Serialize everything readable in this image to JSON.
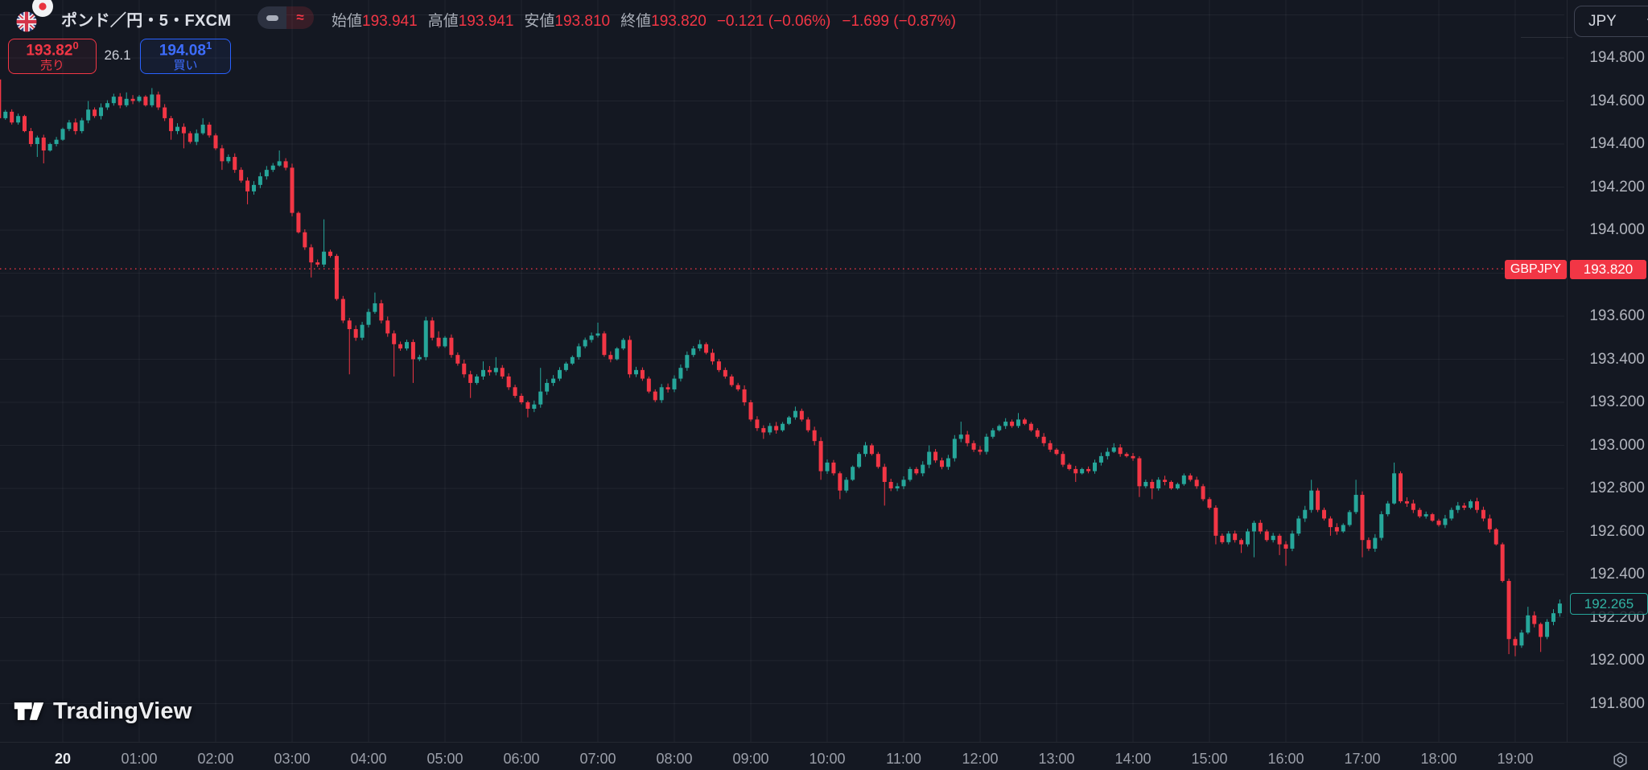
{
  "app": {
    "background": "#141822",
    "accent_red": "#f23645",
    "accent_teal": "#26a69a",
    "accent_blue": "#2962ff"
  },
  "header": {
    "title": "ポンド／円・5・FXCM",
    "flag_icon": "gbp-jpy-flags-icon",
    "style_toggle": {
      "left_icon": "candle-body-icon",
      "right_icon": "approx-waves-icon"
    },
    "ohlc": {
      "open_label": "始値",
      "open_value": "193.941",
      "high_label": "高値",
      "high_value": "193.941",
      "low_label": "安値",
      "low_value": "193.810",
      "close_label": "終値",
      "close_value": "193.820",
      "change": "−0.121 (−0.06%)",
      "change_cumulative": "−1.699 (−0.87%)"
    },
    "currency_selector": "JPY"
  },
  "trade_panel": {
    "sell_price": "193.82",
    "sell_price_sup": "0",
    "sell_label": "売り",
    "spread": "26.1",
    "buy_price": "194.08",
    "buy_price_sup": "1",
    "buy_label": "買い"
  },
  "price_line_label": {
    "symbol": "GBPJPY",
    "price": "193.820"
  },
  "last_price_label": "192.265",
  "price_axis_labels": [
    "194.800",
    "194.600",
    "194.400",
    "194.200",
    "194.000",
    "193.600",
    "193.400",
    "193.200",
    "193.000",
    "192.800",
    "192.600",
    "192.400",
    "192.200",
    "192.000",
    "191.800"
  ],
  "time_axis": {
    "day_label": "20",
    "hour_labels": [
      "01:00",
      "02:00",
      "03:00",
      "04:00",
      "05:00",
      "06:00",
      "07:00",
      "08:00",
      "09:00",
      "10:00",
      "11:00",
      "12:00",
      "13:00",
      "14:00",
      "15:00",
      "16:00",
      "17:00",
      "18:00",
      "19:00"
    ]
  },
  "logo_text": "TradingView",
  "chart_data": {
    "type": "candlestick",
    "symbol": "GBPJPY",
    "exchange": "FXCM",
    "interval_minutes": 5,
    "visible_price_range": [
      191.72,
      195.02
    ],
    "price_grid_step": 0.2,
    "price_grid_top": 195.0,
    "hour_grid_count": 19,
    "price_line_value": 193.82,
    "last_close": 192.265,
    "first_open": 194.7,
    "time_start_minutes": -50,
    "colors": {
      "up": "#26a69a",
      "down": "#f23645",
      "grid": "rgba(255,255,255,0.055)",
      "price_line": "#f23645"
    },
    "candles": [
      [
        -50,
        194.52,
        0,
        194.78
      ],
      [
        -45,
        194.55
      ],
      [
        -40,
        194.5
      ],
      [
        -35,
        194.53
      ],
      [
        -30,
        194.46
      ],
      [
        -25,
        194.4
      ],
      [
        -20,
        194.43,
        194.34
      ],
      [
        -15,
        194.37,
        194.31
      ],
      [
        -10,
        194.4
      ],
      [
        -5,
        194.42
      ],
      [
        0,
        194.47
      ],
      [
        5,
        194.5
      ],
      [
        10,
        194.46
      ],
      [
        15,
        194.51
      ],
      [
        20,
        194.56,
        0,
        194.6
      ],
      [
        25,
        194.53
      ],
      [
        30,
        194.57
      ],
      [
        35,
        194.59
      ],
      [
        40,
        194.62
      ],
      [
        45,
        194.58
      ],
      [
        50,
        194.61,
        0,
        194.64
      ],
      [
        55,
        194.6
      ],
      [
        60,
        194.62
      ],
      [
        65,
        194.58
      ],
      [
        70,
        194.63,
        0,
        194.66
      ],
      [
        75,
        194.57
      ],
      [
        80,
        194.52
      ],
      [
        85,
        194.46,
        194.42
      ],
      [
        90,
        194.48
      ],
      [
        95,
        194.45,
        194.38
      ],
      [
        100,
        194.41
      ],
      [
        105,
        194.45
      ],
      [
        110,
        194.49,
        0,
        194.52
      ],
      [
        115,
        194.44
      ],
      [
        120,
        194.38
      ],
      [
        125,
        194.32,
        194.28
      ],
      [
        130,
        194.34
      ],
      [
        135,
        194.28
      ],
      [
        140,
        194.23
      ],
      [
        145,
        194.18,
        194.12
      ],
      [
        150,
        194.21
      ],
      [
        155,
        194.25
      ],
      [
        160,
        194.28
      ],
      [
        165,
        194.3
      ],
      [
        170,
        194.32,
        0,
        194.37
      ],
      [
        175,
        194.29
      ],
      [
        180,
        194.08
      ],
      [
        185,
        193.99
      ],
      [
        190,
        193.92
      ],
      [
        195,
        193.85,
        193.78
      ],
      [
        200,
        193.84
      ],
      [
        205,
        193.9,
        0,
        194.05
      ],
      [
        210,
        193.88
      ],
      [
        215,
        193.68
      ],
      [
        220,
        193.58
      ],
      [
        225,
        193.54,
        193.33
      ],
      [
        230,
        193.5
      ],
      [
        235,
        193.56
      ],
      [
        240,
        193.62
      ],
      [
        245,
        193.66,
        0,
        193.71
      ],
      [
        250,
        193.58
      ],
      [
        255,
        193.52
      ],
      [
        260,
        193.47,
        193.32
      ],
      [
        265,
        193.45
      ],
      [
        270,
        193.48
      ],
      [
        275,
        193.4,
        193.29
      ],
      [
        280,
        193.41
      ],
      [
        285,
        193.58
      ],
      [
        290,
        193.5
      ],
      [
        295,
        193.46,
        0,
        193.53
      ],
      [
        300,
        193.5
      ],
      [
        305,
        193.42
      ],
      [
        310,
        193.38
      ],
      [
        315,
        193.33
      ],
      [
        320,
        193.29,
        193.22
      ],
      [
        325,
        193.32
      ],
      [
        330,
        193.35,
        0,
        193.39
      ],
      [
        335,
        193.34
      ],
      [
        340,
        193.36,
        0,
        193.41
      ],
      [
        345,
        193.32
      ],
      [
        350,
        193.27
      ],
      [
        355,
        193.23
      ],
      [
        360,
        193.2
      ],
      [
        365,
        193.17,
        193.13
      ],
      [
        370,
        193.19
      ],
      [
        375,
        193.25,
        0,
        193.36
      ],
      [
        380,
        193.29
      ],
      [
        385,
        193.31
      ],
      [
        390,
        193.35
      ],
      [
        395,
        193.38
      ],
      [
        400,
        193.41
      ],
      [
        405,
        193.46
      ],
      [
        410,
        193.49
      ],
      [
        415,
        193.51
      ],
      [
        420,
        193.52,
        0,
        193.57
      ],
      [
        425,
        193.42
      ],
      [
        430,
        193.4
      ],
      [
        435,
        193.45
      ],
      [
        440,
        193.49
      ],
      [
        445,
        193.33
      ],
      [
        450,
        193.35
      ],
      [
        455,
        193.31
      ],
      [
        460,
        193.25
      ],
      [
        465,
        193.21
      ],
      [
        470,
        193.27
      ],
      [
        475,
        193.26
      ],
      [
        480,
        193.31
      ],
      [
        485,
        193.36
      ],
      [
        490,
        193.42
      ],
      [
        495,
        193.45
      ],
      [
        500,
        193.47,
        0,
        193.49
      ],
      [
        505,
        193.43
      ],
      [
        510,
        193.39
      ],
      [
        515,
        193.35
      ],
      [
        520,
        193.32
      ],
      [
        525,
        193.28
      ],
      [
        530,
        193.26
      ],
      [
        535,
        193.2
      ],
      [
        540,
        193.12
      ],
      [
        545,
        193.08
      ],
      [
        550,
        193.06,
        193.03
      ],
      [
        555,
        193.09
      ],
      [
        560,
        193.07
      ],
      [
        565,
        193.1
      ],
      [
        570,
        193.13
      ],
      [
        575,
        193.16,
        0,
        193.18
      ],
      [
        580,
        193.12
      ],
      [
        585,
        193.07
      ],
      [
        590,
        193.02,
        193.0
      ],
      [
        595,
        192.88,
        192.84
      ],
      [
        600,
        192.92
      ],
      [
        605,
        192.87
      ],
      [
        610,
        192.79,
        192.75
      ],
      [
        615,
        192.84
      ],
      [
        620,
        192.9
      ],
      [
        625,
        192.96
      ],
      [
        630,
        193.0
      ],
      [
        635,
        192.96
      ],
      [
        640,
        192.9
      ],
      [
        645,
        192.83,
        192.72
      ],
      [
        650,
        192.8
      ],
      [
        655,
        192.81
      ],
      [
        660,
        192.84
      ],
      [
        665,
        192.89
      ],
      [
        670,
        192.87
      ],
      [
        675,
        192.91
      ],
      [
        680,
        192.97,
        0,
        193.0
      ],
      [
        685,
        192.93
      ],
      [
        690,
        192.9
      ],
      [
        695,
        192.94
      ],
      [
        700,
        193.03
      ],
      [
        705,
        193.05,
        0,
        193.11
      ],
      [
        710,
        193.01
      ],
      [
        715,
        192.98
      ],
      [
        720,
        192.97
      ],
      [
        725,
        193.04
      ],
      [
        730,
        193.07
      ],
      [
        735,
        193.09
      ],
      [
        740,
        193.11
      ],
      [
        745,
        193.09
      ],
      [
        750,
        193.12,
        0,
        193.15
      ],
      [
        755,
        193.1
      ],
      [
        760,
        193.07
      ],
      [
        765,
        193.04
      ],
      [
        770,
        193.01
      ],
      [
        775,
        192.98
      ],
      [
        780,
        192.96
      ],
      [
        785,
        192.91
      ],
      [
        790,
        192.89
      ],
      [
        795,
        192.87,
        192.83
      ],
      [
        800,
        192.89
      ],
      [
        805,
        192.88
      ],
      [
        810,
        192.92
      ],
      [
        815,
        192.95
      ],
      [
        820,
        192.97
      ],
      [
        825,
        192.99,
        0,
        193.01
      ],
      [
        830,
        192.96
      ],
      [
        835,
        192.95
      ],
      [
        840,
        192.94
      ],
      [
        845,
        192.81,
        192.76
      ],
      [
        850,
        192.83
      ],
      [
        855,
        192.8,
        192.75
      ],
      [
        860,
        192.84
      ],
      [
        865,
        192.83
      ],
      [
        870,
        192.8
      ],
      [
        875,
        192.82
      ],
      [
        880,
        192.86
      ],
      [
        885,
        192.84
      ],
      [
        890,
        192.81
      ],
      [
        895,
        192.75
      ],
      [
        900,
        192.71
      ],
      [
        905,
        192.58,
        192.54
      ],
      [
        910,
        192.55
      ],
      [
        915,
        192.59
      ],
      [
        920,
        192.56
      ],
      [
        925,
        192.54,
        192.5
      ],
      [
        930,
        192.6
      ],
      [
        935,
        192.64,
        192.48
      ],
      [
        940,
        192.6
      ],
      [
        945,
        192.56
      ],
      [
        950,
        192.58
      ],
      [
        955,
        192.54,
        192.49
      ],
      [
        960,
        192.52,
        192.44
      ],
      [
        965,
        192.59
      ],
      [
        970,
        192.66
      ],
      [
        975,
        192.7
      ],
      [
        980,
        192.79,
        0,
        192.84
      ],
      [
        985,
        192.7
      ],
      [
        990,
        192.66
      ],
      [
        995,
        192.62,
        192.58
      ],
      [
        1000,
        192.6
      ],
      [
        1005,
        192.63
      ],
      [
        1010,
        192.69
      ],
      [
        1015,
        192.77,
        0,
        192.84
      ],
      [
        1020,
        192.56,
        192.48
      ],
      [
        1025,
        192.52
      ],
      [
        1030,
        192.57
      ],
      [
        1035,
        192.68
      ],
      [
        1040,
        192.73
      ],
      [
        1045,
        192.87,
        0,
        192.92
      ],
      [
        1050,
        192.74
      ],
      [
        1055,
        192.73
      ],
      [
        1060,
        192.7
      ],
      [
        1065,
        192.67
      ],
      [
        1070,
        192.68
      ],
      [
        1075,
        192.65
      ],
      [
        1080,
        192.63
      ],
      [
        1085,
        192.66
      ],
      [
        1090,
        192.7
      ],
      [
        1095,
        192.72
      ],
      [
        1100,
        192.71
      ],
      [
        1105,
        192.74
      ],
      [
        1110,
        192.7
      ],
      [
        1115,
        192.66
      ],
      [
        1120,
        192.61
      ],
      [
        1125,
        192.54
      ],
      [
        1130,
        192.37
      ],
      [
        1135,
        192.1,
        192.03
      ],
      [
        1140,
        192.07,
        192.02
      ],
      [
        1145,
        192.13
      ],
      [
        1150,
        192.21,
        0,
        192.25
      ],
      [
        1155,
        192.17
      ],
      [
        1160,
        192.11,
        192.04
      ],
      [
        1165,
        192.18
      ],
      [
        1170,
        192.22
      ],
      [
        1175,
        192.265
      ]
    ]
  }
}
